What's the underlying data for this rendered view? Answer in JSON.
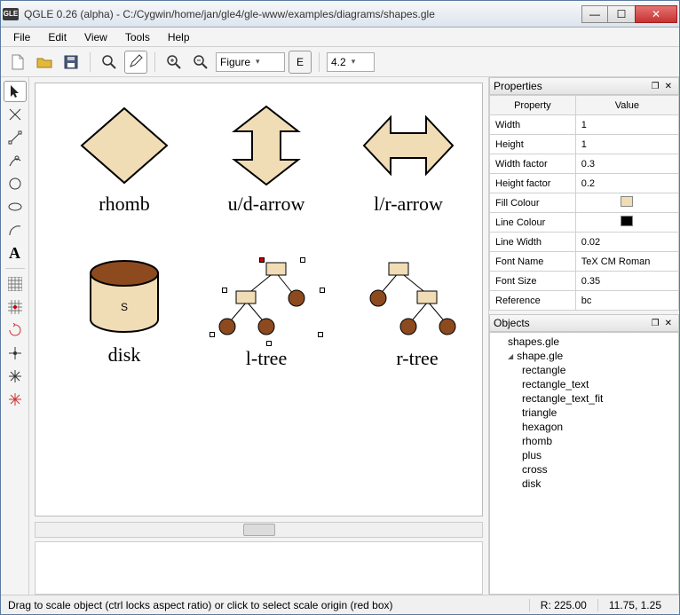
{
  "window": {
    "appicon": "GLE",
    "title": "QGLE 0.26 (alpha) - C:/Cygwin/home/jan/gle4/gle-www/examples/diagrams/shapes.gle"
  },
  "menu": [
    "File",
    "Edit",
    "View",
    "Tools",
    "Help"
  ],
  "toolbar": {
    "figure_combo": "Figure",
    "zoom_combo": "4.2"
  },
  "shapes": {
    "row1": [
      {
        "label": "rhomb"
      },
      {
        "label": "u/d-arrow"
      },
      {
        "label": "l/r-arrow"
      }
    ],
    "row2": [
      {
        "label": "disk",
        "text": "S"
      },
      {
        "label": "l-tree"
      },
      {
        "label": "r-tree"
      }
    ],
    "fill": "#f0dcb5",
    "stroke": "#000000",
    "disk_top": "#8c4a1e",
    "tree_circle": "#8c4a1e"
  },
  "properties": {
    "title": "Properties",
    "header": [
      "Property",
      "Value"
    ],
    "rows": [
      {
        "k": "Width",
        "v": "1"
      },
      {
        "k": "Height",
        "v": "1"
      },
      {
        "k": "Width factor",
        "v": "0.3"
      },
      {
        "k": "Height factor",
        "v": "0.2"
      },
      {
        "k": "Fill Colour",
        "v": "",
        "swatch": "#f0dcb5"
      },
      {
        "k": "Line Colour",
        "v": "",
        "swatch": "#000000"
      },
      {
        "k": "Line Width",
        "v": "0.02"
      },
      {
        "k": "Font Name",
        "v": "TeX CM Roman"
      },
      {
        "k": "Font Size",
        "v": "0.35"
      },
      {
        "k": "Reference",
        "v": "bc"
      }
    ]
  },
  "objects": {
    "title": "Objects",
    "root": "shapes.gle",
    "parent": "shape.gle",
    "children": [
      "rectangle",
      "rectangle_text",
      "rectangle_text_fit",
      "triangle",
      "hexagon",
      "rhomb",
      "plus",
      "cross",
      "disk"
    ]
  },
  "status": {
    "msg": "Drag to scale object (ctrl locks aspect ratio) or click to select scale origin (red box)",
    "r": "R:  225.00",
    "coord": "11.75, 1.25"
  }
}
